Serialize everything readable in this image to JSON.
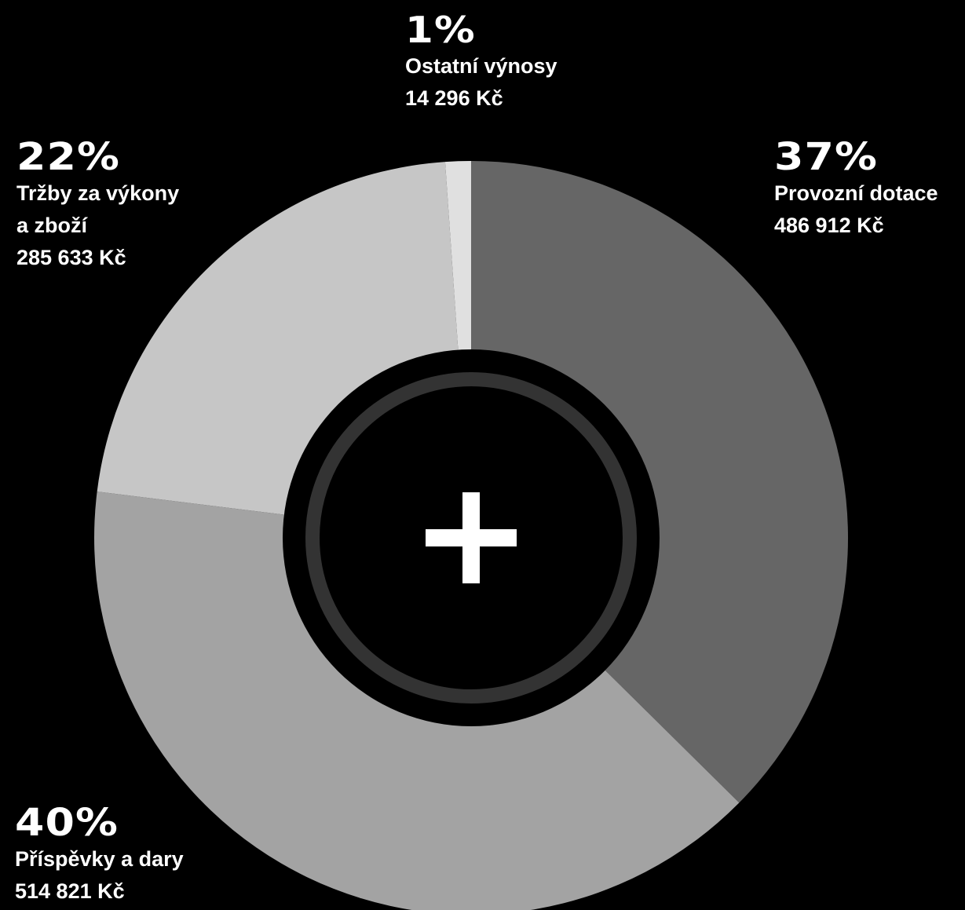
{
  "chart_data": {
    "type": "pie",
    "title": "",
    "center_icon": "plus-icon",
    "slices": [
      {
        "label": "Provozní dotace",
        "percent": "37%",
        "amount": "486 912 Kč",
        "value": 486912,
        "color": "#666666"
      },
      {
        "label": "Příspěvky a dary",
        "percent": "40%",
        "amount": "514 821 Kč",
        "value": 514821,
        "color": "#a3a3a3"
      },
      {
        "label": "Tržby za výkony\na zboží",
        "percent": "22%",
        "amount": "285 633 Kč",
        "value": 285633,
        "color": "#c6c6c6"
      },
      {
        "label": "Ostatní výnosy",
        "percent": "1%",
        "amount": "14 296 Kč",
        "value": 14296,
        "color": "#e0e0e0"
      }
    ],
    "colors": {
      "background": "#000000",
      "center_ring": "#333333",
      "center_icon": "#ffffff",
      "text": "#ffffff"
    }
  }
}
